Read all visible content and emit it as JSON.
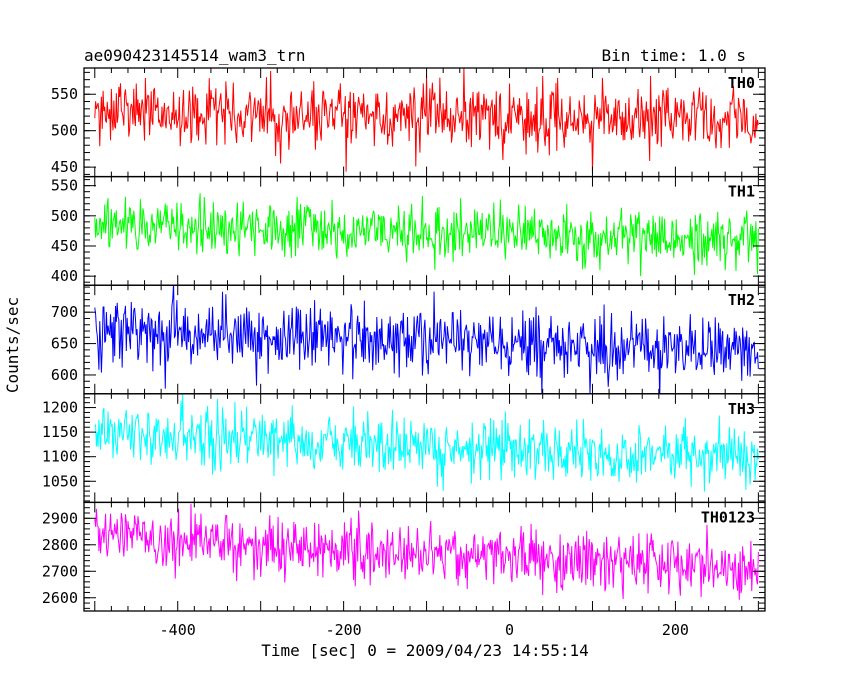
{
  "chart_data": {
    "type": "line",
    "title": "ae090423145514_wam3_trn",
    "subtitle": "Bin time: 1.0 s",
    "xlabel": "Time [sec] 0 = 2009/04/23 14:55:14",
    "ylabel": "Counts/sec",
    "xlim": [
      -513,
      308
    ],
    "data_x_range": [
      -500,
      300
    ],
    "x_ticks": [
      -400,
      -200,
      0,
      200
    ],
    "grid": false,
    "legend": "none",
    "panels": [
      {
        "name": "TH0",
        "color": "#ff0000",
        "ylim": [
          437,
          586
        ],
        "y_ticks": [
          450,
          500,
          550
        ],
        "mean_start": 525,
        "mean_end": 513,
        "noise": 22
      },
      {
        "name": "TH1",
        "color": "#00ff00",
        "ylim": [
          385,
          565
        ],
        "y_ticks": [
          400,
          450,
          500,
          550
        ],
        "mean_start": 485,
        "mean_end": 462,
        "noise": 23
      },
      {
        "name": "TH2",
        "color": "#0000ff",
        "ylim": [
          570,
          743
        ],
        "y_ticks": [
          600,
          650,
          700
        ],
        "mean_start": 670,
        "mean_end": 640,
        "noise": 25
      },
      {
        "name": "TH3",
        "color": "#00ffff",
        "ylim": [
          1007,
          1228
        ],
        "y_ticks": [
          1050,
          1100,
          1150,
          1200
        ],
        "mean_start": 1148,
        "mean_end": 1098,
        "noise": 30
      },
      {
        "name": "TH0123",
        "color": "#ff00ff",
        "ylim": [
          2550,
          2960
        ],
        "y_ticks": [
          2600,
          2700,
          2800,
          2900
        ],
        "mean_start": 2830,
        "mean_end": 2710,
        "noise": 55
      }
    ]
  }
}
